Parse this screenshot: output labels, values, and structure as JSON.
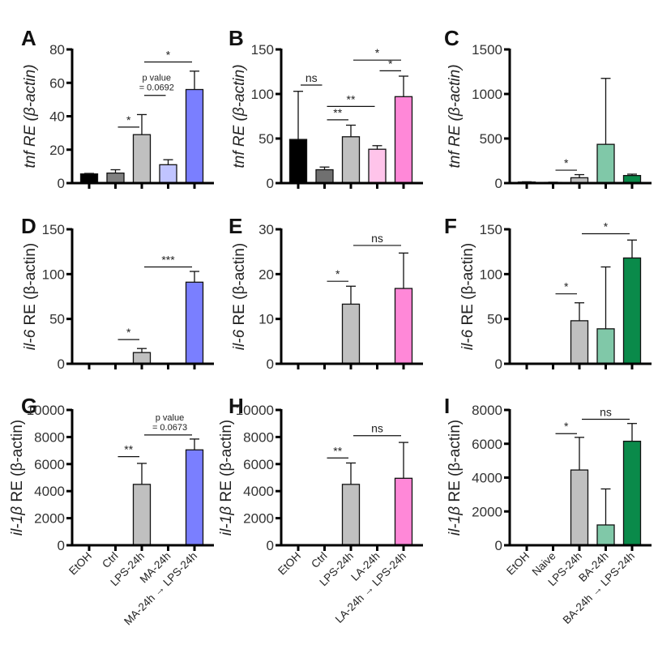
{
  "chart_data": [
    {
      "panel": "A",
      "type": "bar",
      "ylabel_gene": "tnf",
      "ylabel_italic_part": "tnf RE",
      "ylabel_rest": " (β-actin)",
      "ylabel_all_italic": true,
      "categories": [
        "EtOH",
        "Ctrl",
        "LPS-24h",
        "MA-24h",
        "MA-24h → LPS-24h"
      ],
      "values": [
        5.5,
        6,
        29,
        11,
        56
      ],
      "errors": [
        0.3,
        2,
        12,
        3,
        11
      ],
      "colors": [
        "#000000",
        "#808080",
        "#c0c0c0",
        "#c0c4ff",
        "#7a7fff"
      ],
      "ylim": [
        0,
        80
      ],
      "yticks": [
        0,
        20,
        40,
        60,
        80
      ],
      "ytick_labels": [
        "0",
        "20",
        "40",
        "60",
        "80"
      ],
      "show_xlabels": false,
      "annotations": [
        {
          "from": 1,
          "to": 2,
          "label": "*",
          "value": 33.5
        },
        {
          "from": 2,
          "to": 3,
          "label": "p value\n= 0.0692",
          "value": 52.5,
          "small": true
        },
        {
          "from": 2,
          "to": 4,
          "label": "*",
          "value": 72.5
        }
      ]
    },
    {
      "panel": "B",
      "type": "bar",
      "ylabel_italic_part": "tnf RE",
      "ylabel_rest": " (β-actin)",
      "ylabel_all_italic": true,
      "categories": [
        "EtOH",
        "Ctrl",
        "LA-24h",
        "LPS-24h",
        "LA-24h → LPS-24h"
      ],
      "values": [
        49,
        15,
        52,
        38,
        97
      ],
      "errors": [
        54,
        3,
        13,
        4,
        23
      ],
      "colors": [
        "#000000",
        "#707070",
        "#c0c0c0",
        "#ffc4ea",
        "#ff88d8"
      ],
      "ylim": [
        0,
        150
      ],
      "yticks": [
        0,
        50,
        100,
        150
      ],
      "ytick_labels": [
        "0",
        "50",
        "100",
        "150"
      ],
      "show_xlabels": false,
      "annotations": [
        {
          "from": 0,
          "to": 1,
          "label": "ns",
          "value": 110
        },
        {
          "from": 1,
          "to": 2,
          "label": "**",
          "value": 71
        },
        {
          "from": 1,
          "to": 3,
          "label": "**",
          "value": 86
        },
        {
          "from": 3,
          "to": 4,
          "label": "*",
          "value": 126
        },
        {
          "from": 2,
          "to": 4,
          "label": "*",
          "value": 138
        }
      ]
    },
    {
      "panel": "C",
      "type": "bar",
      "ylabel_italic_part": "tnf RE",
      "ylabel_rest": " (β-actin)",
      "ylabel_all_italic": true,
      "categories": [
        "EtOH",
        "Naive",
        "LPS-24h",
        "BA-24h",
        "BA-24h → LPS-24h"
      ],
      "values": [
        12,
        8,
        60,
        435,
        85
      ],
      "errors": [
        3,
        2,
        35,
        740,
        15
      ],
      "colors": [
        "#000000",
        "#606060",
        "#c0c0c0",
        "#80c8a8",
        "#0a8a4a"
      ],
      "ylim": [
        0,
        1500
      ],
      "yticks": [
        0,
        500,
        1000,
        1500
      ],
      "ytick_labels": [
        "0",
        "500",
        "1000",
        "1500"
      ],
      "show_xlabels": false,
      "annotations": [
        {
          "from": 1,
          "to": 2,
          "label": "*",
          "value": 145
        }
      ]
    },
    {
      "panel": "D",
      "type": "bar",
      "ylabel_italic_part": "il-6",
      "ylabel_rest": " RE (β-actin)",
      "ylabel_all_italic": false,
      "categories": [
        "EtOH",
        "Ctrl",
        "LPS-24h",
        "MA-24h",
        "MA-24h → LPS-24h"
      ],
      "values": [
        0,
        0,
        12.5,
        0,
        91
      ],
      "errors": [
        0,
        0,
        4.5,
        0,
        12
      ],
      "colors": [
        "#000000",
        "#808080",
        "#c0c0c0",
        "#c0c4ff",
        "#7a7fff"
      ],
      "ylim": [
        0,
        150
      ],
      "yticks": [
        0,
        50,
        100,
        150
      ],
      "ytick_labels": [
        "0",
        "50",
        "100",
        "150"
      ],
      "show_xlabels": false,
      "annotations": [
        {
          "from": 1,
          "to": 2,
          "label": "*",
          "value": 27
        },
        {
          "from": 2,
          "to": 4,
          "label": "***",
          "value": 108
        }
      ]
    },
    {
      "panel": "E",
      "type": "bar",
      "ylabel_italic_part": "il-6",
      "ylabel_rest": " RE (β-actin)",
      "ylabel_all_italic": false,
      "categories": [
        "EtOH",
        "Ctrl",
        "LPS-24h",
        "LA-24h",
        "LA-24h → LPS-24h"
      ],
      "values": [
        0,
        0,
        13.3,
        0,
        16.8
      ],
      "errors": [
        0,
        0,
        4,
        0,
        7.9
      ],
      "colors": [
        "#000000",
        "#707070",
        "#c0c0c0",
        "#ffc4ea",
        "#ff88d8"
      ],
      "ylim": [
        0,
        30
      ],
      "yticks": [
        0,
        10,
        20,
        30
      ],
      "ytick_labels": [
        "0",
        "10",
        "20",
        "30"
      ],
      "show_xlabels": false,
      "annotations": [
        {
          "from": 1,
          "to": 2,
          "label": "*",
          "value": 18.4
        },
        {
          "from": 2,
          "to": 4,
          "label": "ns",
          "value": 26.4
        }
      ]
    },
    {
      "panel": "F",
      "type": "bar",
      "ylabel_italic_part": "il-6",
      "ylabel_rest": " RE (β-actin)",
      "ylabel_all_italic": false,
      "categories": [
        "EtOH",
        "Naive",
        "LPS-24h",
        "BA-24h",
        "BA-24h → LPS-24h"
      ],
      "values": [
        0,
        0,
        48,
        39,
        118
      ],
      "errors": [
        0,
        0,
        20,
        69,
        20
      ],
      "colors": [
        "#000000",
        "#606060",
        "#c0c0c0",
        "#80c8a8",
        "#0a8a4a"
      ],
      "ylim": [
        0,
        150
      ],
      "yticks": [
        0,
        50,
        100,
        150
      ],
      "ytick_labels": [
        "0",
        "50",
        "100",
        "150"
      ],
      "show_xlabels": false,
      "annotations": [
        {
          "from": 1,
          "to": 2,
          "label": "*",
          "value": 78
        },
        {
          "from": 2,
          "to": 4,
          "label": "*",
          "value": 145
        }
      ]
    },
    {
      "panel": "G",
      "type": "bar",
      "ylabel_italic_part": "il-1β",
      "ylabel_rest": " RE (β-actin)",
      "ylabel_all_italic": false,
      "categories": [
        "EtOH",
        "Ctrl",
        "LPS-24h",
        "MA-24h",
        "MA-24h → LPS-24h"
      ],
      "values": [
        0,
        0,
        4500,
        0,
        7050
      ],
      "errors": [
        0,
        0,
        1550,
        0,
        800
      ],
      "colors": [
        "#000000",
        "#808080",
        "#c0c0c0",
        "#c0c4ff",
        "#7a7fff"
      ],
      "ylim": [
        0,
        10000
      ],
      "yticks": [
        0,
        2000,
        4000,
        6000,
        8000,
        10000
      ],
      "ytick_labels": [
        "0",
        "2000",
        "4000",
        "6000",
        "8000",
        "10000"
      ],
      "show_xlabels": true,
      "annotations": [
        {
          "from": 1,
          "to": 2,
          "label": "**",
          "value": 6550
        },
        {
          "from": 2,
          "to": 4,
          "label": "p value\n= 0.0673",
          "value": 8150,
          "small": true
        }
      ]
    },
    {
      "panel": "H",
      "type": "bar",
      "ylabel_italic_part": "il-1β",
      "ylabel_rest": " RE (β-actin)",
      "ylabel_all_italic": false,
      "categories": [
        "EtOH",
        "Ctrl",
        "LPS-24h",
        "LA-24h",
        "LA-24h → LPS-24h"
      ],
      "values": [
        0,
        0,
        4500,
        0,
        4950
      ],
      "errors": [
        0,
        0,
        1580,
        0,
        2650
      ],
      "colors": [
        "#000000",
        "#707070",
        "#c0c0c0",
        "#ffc4ea",
        "#ff88d8"
      ],
      "ylim": [
        0,
        10000
      ],
      "yticks": [
        0,
        2000,
        4000,
        6000,
        8000,
        10000
      ],
      "ytick_labels": [
        "0",
        "2000",
        "4000",
        "6000",
        "8000",
        "10000"
      ],
      "show_xlabels": true,
      "annotations": [
        {
          "from": 1,
          "to": 2,
          "label": "**",
          "value": 6450
        },
        {
          "from": 2,
          "to": 4,
          "label": "ns",
          "value": 8100
        }
      ]
    },
    {
      "panel": "I",
      "type": "bar",
      "ylabel_italic_part": "il-1β",
      "ylabel_rest": " RE (β-actin)",
      "ylabel_all_italic": false,
      "categories": [
        "EtOH",
        "Naive",
        "LPS-24h",
        "BA-24h",
        "BA-24h → LPS-24h"
      ],
      "values": [
        0,
        0,
        4450,
        1200,
        6150
      ],
      "errors": [
        0,
        0,
        1930,
        2130,
        1050
      ],
      "colors": [
        "#000000",
        "#606060",
        "#c0c0c0",
        "#80c8a8",
        "#0a8a4a"
      ],
      "ylim": [
        0,
        8000
      ],
      "yticks": [
        0,
        2000,
        4000,
        6000,
        8000
      ],
      "ytick_labels": [
        "0",
        "2000",
        "4000",
        "6000",
        "8000"
      ],
      "show_xlabels": true,
      "annotations": [
        {
          "from": 1,
          "to": 2,
          "label": "*",
          "value": 6600
        },
        {
          "from": 2,
          "to": 4,
          "label": "ns",
          "value": 7450
        }
      ]
    }
  ]
}
